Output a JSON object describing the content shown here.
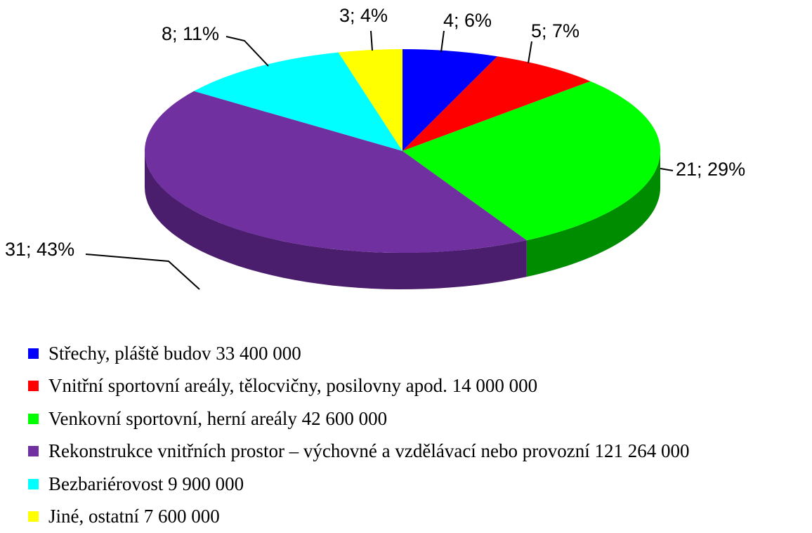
{
  "chart_data": {
    "type": "pie",
    "title": "",
    "slices": [
      {
        "label": "Střechy, pláště budov  33 400 000",
        "value": 4,
        "percent": 6,
        "data_label": "4; 6%",
        "color": "#0000FF",
        "side_color": "#00009A"
      },
      {
        "label": "Vnitřní sportovní areály, tělocvičny, posilovny apod. 14 000 000",
        "value": 5,
        "percent": 7,
        "data_label": "5; 7%",
        "color": "#FF0000",
        "side_color": "#9A0000"
      },
      {
        "label": "Venkovní sportovní, herní areály 42 600 000",
        "value": 21,
        "percent": 29,
        "data_label": "21; 29%",
        "color": "#00FF00",
        "side_color": "#008C00"
      },
      {
        "label": "Rekonstrukce vnitřních prostor – výchovné a vzdělávací nebo provozní 121 264 000",
        "value": 31,
        "percent": 43,
        "data_label": "31; 43%",
        "color": "#7030A0",
        "side_color": "#4A1E6C"
      },
      {
        "label": "Bezbariérovost 9 900 000",
        "value": 8,
        "percent": 11,
        "data_label": "8; 11%",
        "color": "#00FFFF",
        "side_color": "#009A9A"
      },
      {
        "label": "Jiné, ostatní 7 600 000",
        "value": 3,
        "percent": 4,
        "data_label": "3; 4%",
        "color": "#FFFF00",
        "side_color": "#9A9A00"
      }
    ],
    "legend_position": "bottom",
    "style": "3d-pie"
  }
}
